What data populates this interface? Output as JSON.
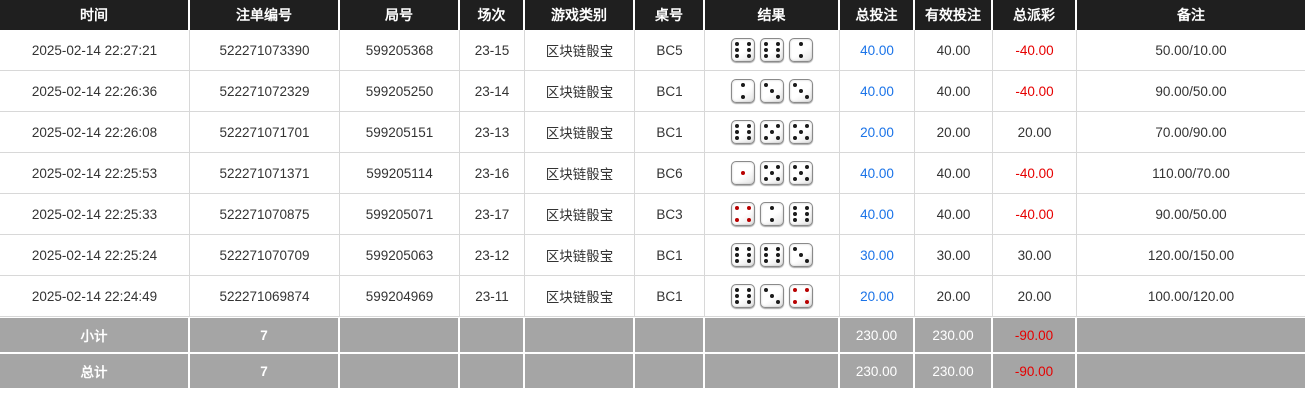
{
  "colors": {
    "header_bg": "#1f1f1f",
    "summary_bg": "#a5a5a5",
    "total_bet_blue": "#1a73e8",
    "negative_red": "#e60000"
  },
  "table": {
    "headers": [
      "时间",
      "注单编号",
      "局号",
      "场次",
      "游戏类别",
      "桌号",
      "结果",
      "总投注",
      "有效投注",
      "总派彩",
      "备注"
    ],
    "rows": [
      {
        "time": "2025-02-14 22:27:21",
        "bet_no": "522271073390",
        "round_no": "599205368",
        "session": "23-15",
        "game_type": "区块链骰宝",
        "table_no": "BC5",
        "dice": [
          6,
          6,
          2
        ],
        "total_bet": "40.00",
        "valid_bet": "40.00",
        "payout": "-40.00",
        "remark": "50.00/10.00"
      },
      {
        "time": "2025-02-14 22:26:36",
        "bet_no": "522271072329",
        "round_no": "599205250",
        "session": "23-14",
        "game_type": "区块链骰宝",
        "table_no": "BC1",
        "dice": [
          2,
          3,
          3
        ],
        "total_bet": "40.00",
        "valid_bet": "40.00",
        "payout": "-40.00",
        "remark": "90.00/50.00"
      },
      {
        "time": "2025-02-14 22:26:08",
        "bet_no": "522271071701",
        "round_no": "599205151",
        "session": "23-13",
        "game_type": "区块链骰宝",
        "table_no": "BC1",
        "dice": [
          6,
          5,
          5
        ],
        "total_bet": "20.00",
        "valid_bet": "20.00",
        "payout": "20.00",
        "remark": "70.00/90.00"
      },
      {
        "time": "2025-02-14 22:25:53",
        "bet_no": "522271071371",
        "round_no": "599205114",
        "session": "23-16",
        "game_type": "区块链骰宝",
        "table_no": "BC6",
        "dice": [
          1,
          5,
          5
        ],
        "total_bet": "40.00",
        "valid_bet": "40.00",
        "payout": "-40.00",
        "remark": "110.00/70.00"
      },
      {
        "time": "2025-02-14 22:25:33",
        "bet_no": "522271070875",
        "round_no": "599205071",
        "session": "23-17",
        "game_type": "区块链骰宝",
        "table_no": "BC3",
        "dice": [
          4,
          2,
          6
        ],
        "total_bet": "40.00",
        "valid_bet": "40.00",
        "payout": "-40.00",
        "remark": "90.00/50.00"
      },
      {
        "time": "2025-02-14 22:25:24",
        "bet_no": "522271070709",
        "round_no": "599205063",
        "session": "23-12",
        "game_type": "区块链骰宝",
        "table_no": "BC1",
        "dice": [
          6,
          6,
          3
        ],
        "total_bet": "30.00",
        "valid_bet": "30.00",
        "payout": "30.00",
        "remark": "120.00/150.00"
      },
      {
        "time": "2025-02-14 22:24:49",
        "bet_no": "522271069874",
        "round_no": "599204969",
        "session": "23-11",
        "game_type": "区块链骰宝",
        "table_no": "BC1",
        "dice": [
          6,
          3,
          4
        ],
        "total_bet": "20.00",
        "valid_bet": "20.00",
        "payout": "20.00",
        "remark": "100.00/120.00"
      }
    ],
    "subtotal": {
      "label": "小计",
      "count": "7",
      "total_bet": "230.00",
      "valid_bet": "230.00",
      "payout": "-90.00"
    },
    "total": {
      "label": "总计",
      "count": "7",
      "total_bet": "230.00",
      "valid_bet": "230.00",
      "payout": "-90.00"
    }
  }
}
